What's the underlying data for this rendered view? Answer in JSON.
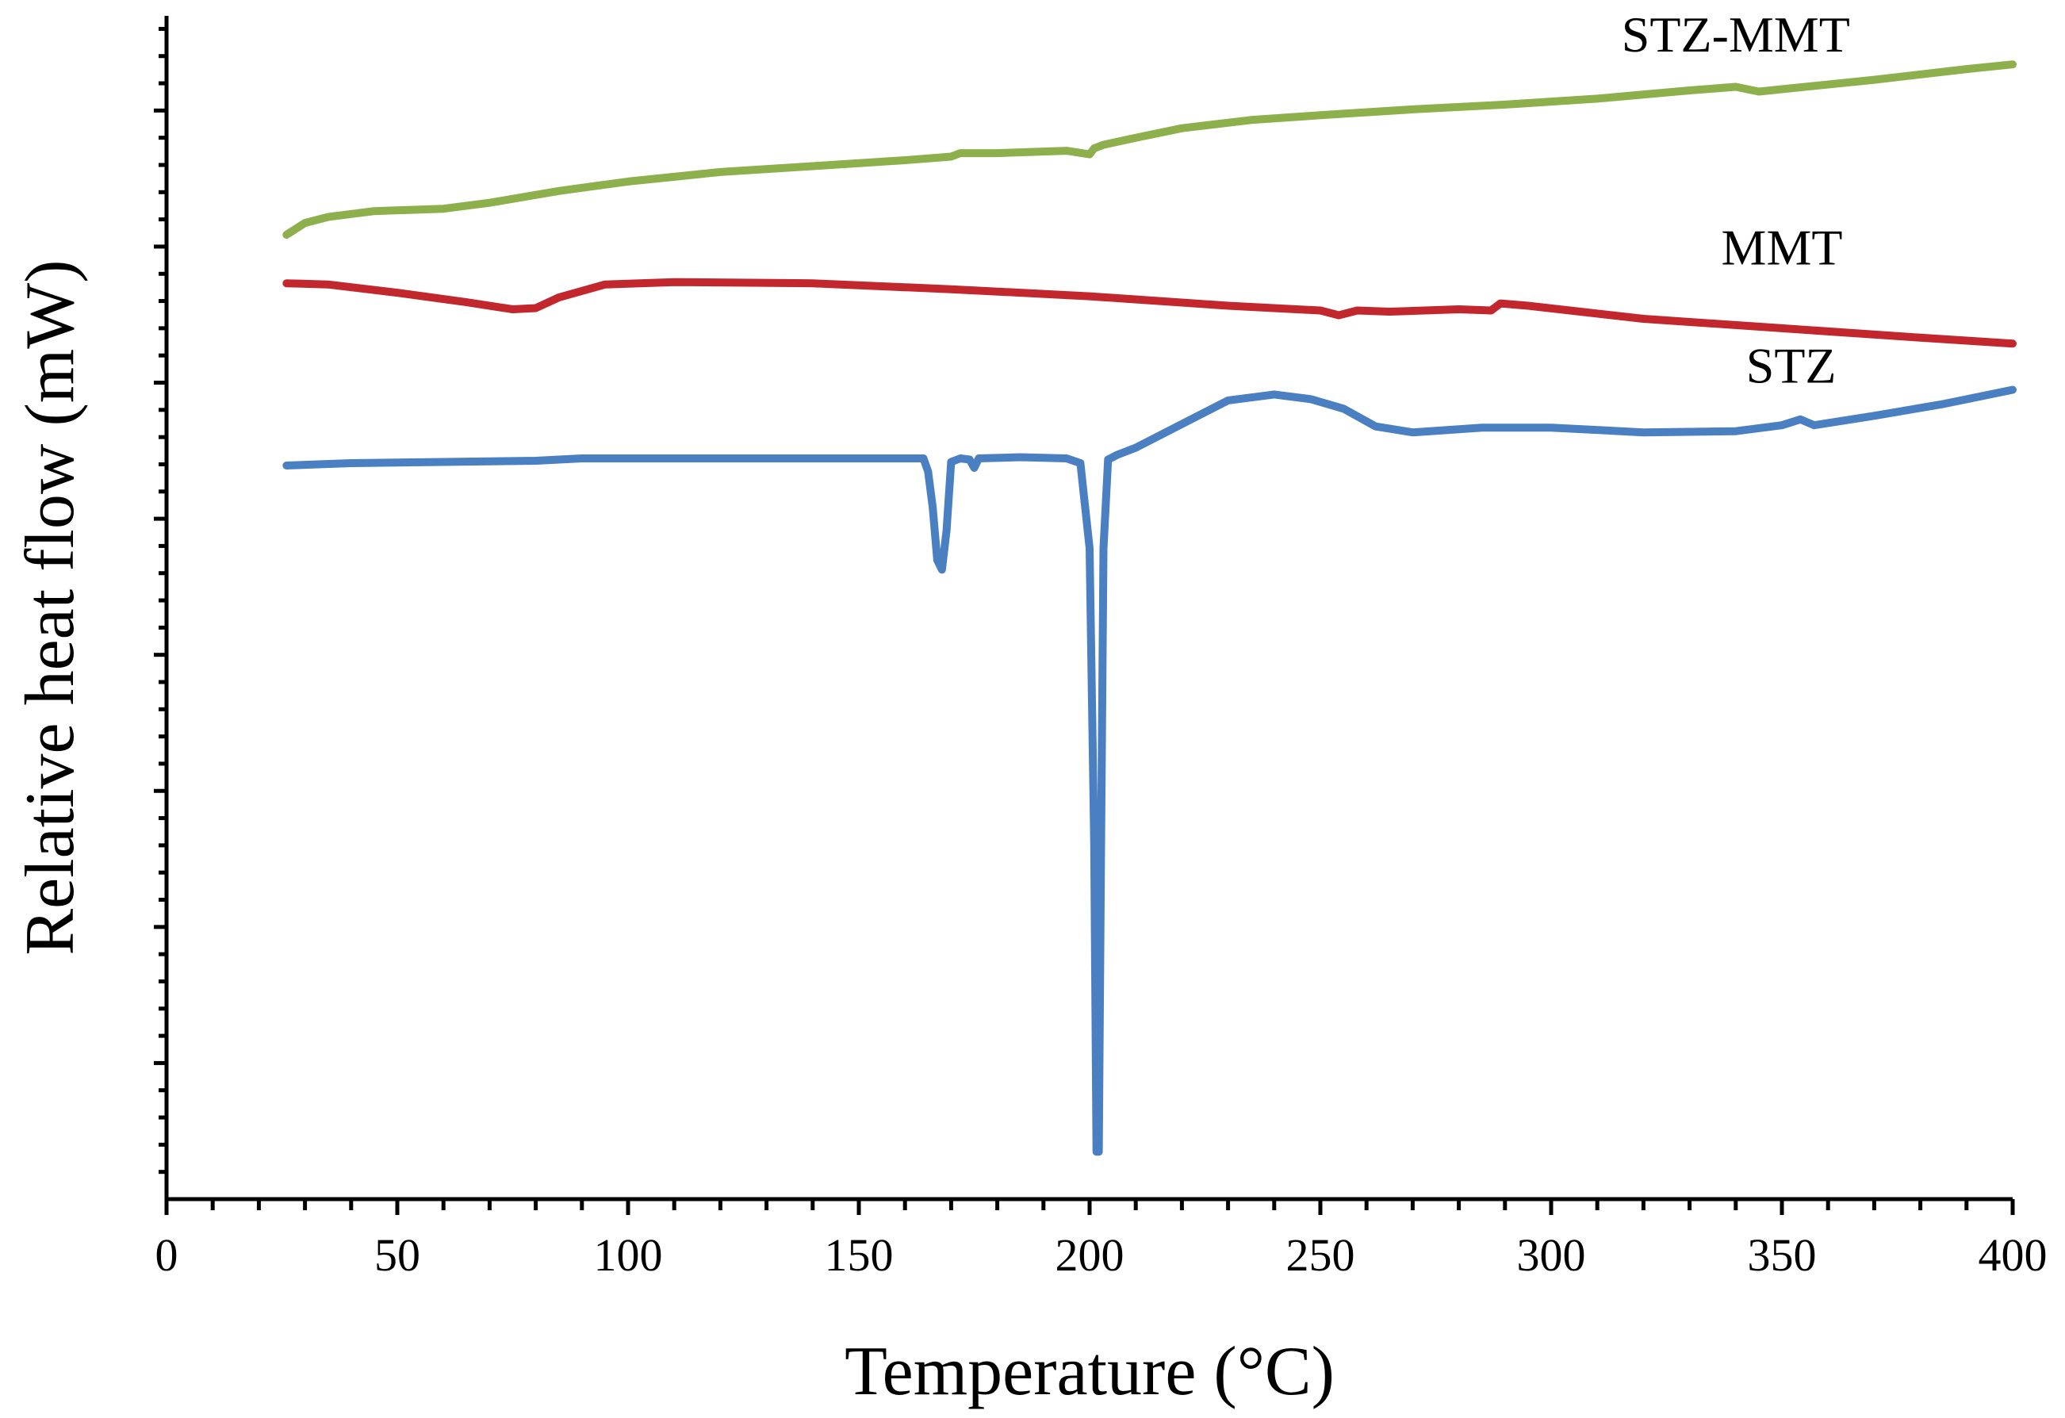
{
  "chart_data": {
    "type": "line",
    "title": "",
    "xlabel": "Temperature (°C)",
    "ylabel": "Relative heat flow (mW)",
    "xlim": [
      0,
      400
    ],
    "ylim": [
      0,
      100
    ],
    "x_ticks": [
      0,
      50,
      100,
      150,
      200,
      250,
      300,
      350,
      400
    ],
    "x_minor_step": 10,
    "y_ticks_shown": false,
    "y_minor_step": 2.3,
    "series": [
      {
        "name": "STZ-MMT",
        "color": "#8db04c",
        "label_at": [
          340,
          97
        ],
        "x": [
          26,
          30,
          35,
          45,
          60,
          70,
          85,
          100,
          120,
          140,
          160,
          170,
          172,
          180,
          195,
          200,
          201,
          203,
          210,
          220,
          235,
          250,
          270,
          290,
          310,
          330,
          340,
          345,
          350,
          370,
          390,
          400
        ],
        "y": [
          81.5,
          82.5,
          83.0,
          83.5,
          83.7,
          84.2,
          85.2,
          86.0,
          86.8,
          87.3,
          87.8,
          88.1,
          88.4,
          88.4,
          88.6,
          88.3,
          88.8,
          89.1,
          89.7,
          90.5,
          91.2,
          91.6,
          92.1,
          92.5,
          93.0,
          93.7,
          94.0,
          93.6,
          93.8,
          94.6,
          95.5,
          95.9
        ]
      },
      {
        "name": "MMT",
        "color": "#c1272d",
        "label_at": [
          350,
          79
        ],
        "x": [
          26,
          35,
          50,
          65,
          75,
          80,
          85,
          95,
          110,
          140,
          170,
          200,
          230,
          250,
          254,
          258,
          265,
          280,
          287,
          289,
          295,
          320,
          350,
          380,
          400
        ],
        "y": [
          77.4,
          77.3,
          76.6,
          75.8,
          75.2,
          75.3,
          76.2,
          77.3,
          77.5,
          77.4,
          76.9,
          76.3,
          75.5,
          75.1,
          74.7,
          75.1,
          75.0,
          75.2,
          75.1,
          75.7,
          75.5,
          74.4,
          73.6,
          72.8,
          72.3
        ]
      },
      {
        "name": "STZ",
        "color": "#4a7fc1",
        "label_at": [
          352,
          69
        ],
        "x": [
          26,
          40,
          60,
          80,
          90,
          120,
          150,
          164,
          165,
          166,
          167,
          168,
          169,
          170,
          172,
          174,
          175,
          176,
          185,
          195,
          198,
          200,
          201,
          201.5,
          202,
          202.5,
          203,
          204,
          206,
          210,
          220,
          230,
          240,
          248,
          255,
          262,
          270,
          285,
          300,
          320,
          340,
          350,
          354,
          357,
          370,
          385,
          400
        ],
        "y": [
          62.0,
          62.2,
          62.3,
          62.4,
          62.6,
          62.6,
          62.6,
          62.6,
          61.5,
          58.5,
          54.0,
          53.2,
          56.5,
          62.3,
          62.6,
          62.5,
          61.8,
          62.6,
          62.7,
          62.6,
          62.2,
          55.0,
          30.0,
          4.0,
          4.0,
          30.0,
          55.0,
          62.5,
          62.9,
          63.5,
          65.5,
          67.5,
          68.0,
          67.6,
          66.8,
          65.3,
          64.8,
          65.2,
          65.2,
          64.8,
          64.9,
          65.4,
          65.9,
          65.4,
          66.2,
          67.2,
          68.4
        ]
      }
    ]
  }
}
